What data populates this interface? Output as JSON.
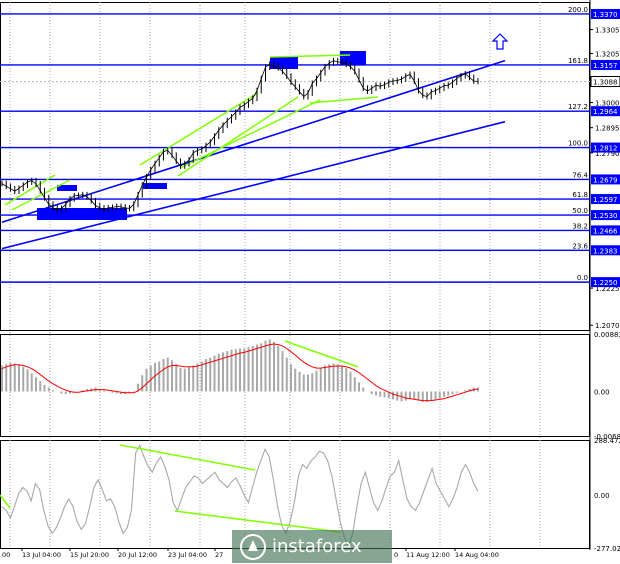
{
  "chart_data": [
    {
      "type": "line",
      "name": "price",
      "x_ticks": [
        "13 Jul 04:00",
        "15 Jul 20:00",
        "20 Jul 12:00",
        "23 Jul 04:00",
        "27",
        "11 Aug 12:00",
        "14 Aug 04:00"
      ],
      "x_tick_partial": [
        "00",
        "0"
      ],
      "ylim": [
        1.205,
        1.342
      ],
      "price_scale_ticks": [
        "1.3305",
        "1.3205",
        "1.3000",
        "1.2895",
        "1.2790",
        "1.2225",
        "1.2070"
      ],
      "current_price": "1.3088",
      "fib_levels": [
        {
          "pct": "200.0",
          "value": "1.3370",
          "y": 1.337
        },
        {
          "pct": "161.8",
          "value": "1.3157",
          "y": 1.3157
        },
        {
          "pct": "127.2",
          "value": "1.2964",
          "y": 1.2964
        },
        {
          "pct": "100.0",
          "value": "1.2812",
          "y": 1.2812
        },
        {
          "pct": "76.4",
          "value": "1.2679",
          "y": 1.2679
        },
        {
          "pct": "61.8",
          "value": "1.2597",
          "y": 1.2597
        },
        {
          "pct": "50.0",
          "value": "1.2530",
          "y": 1.253
        },
        {
          "pct": "38.2",
          "value": "1.2466",
          "y": 1.2466
        },
        {
          "pct": "23.6",
          "value": "1.2383",
          "y": 1.2383
        },
        {
          "pct": "0.0",
          "value": "1.2250",
          "y": 1.225
        }
      ],
      "closes": [
        1.2662,
        1.265,
        1.264,
        1.263,
        1.2642,
        1.2655,
        1.2668,
        1.2674,
        1.266,
        1.2632,
        1.2602,
        1.2575,
        1.256,
        1.2552,
        1.2558,
        1.2575,
        1.2598,
        1.261,
        1.2612,
        1.2615,
        1.2606,
        1.259,
        1.257,
        1.256,
        1.2555,
        1.256,
        1.2562,
        1.2566,
        1.2564,
        1.256,
        1.2558,
        1.2575,
        1.2615,
        1.2655,
        1.269,
        1.272,
        1.2745,
        1.277,
        1.2795,
        1.28,
        1.278,
        1.2755,
        1.2735,
        1.2745,
        1.276,
        1.279,
        1.28,
        1.2805,
        1.282,
        1.2835,
        1.286,
        1.2885,
        1.2905,
        1.2925,
        1.294,
        1.296,
        1.298,
        1.299,
        1.3005,
        1.3018,
        1.305,
        1.31,
        1.3148,
        1.316,
        1.3152,
        1.3145,
        1.313,
        1.311,
        1.3085,
        1.3065,
        1.3045,
        1.3025,
        1.304,
        1.308,
        1.31,
        1.3125,
        1.315,
        1.3165,
        1.3175,
        1.317,
        1.3168,
        1.316,
        1.315,
        1.313,
        1.3095,
        1.306,
        1.3048,
        1.306,
        1.3072,
        1.3068,
        1.3075,
        1.3085,
        1.309,
        1.3092,
        1.3098,
        1.311,
        1.3118,
        1.309,
        1.305,
        1.303,
        1.3025,
        1.3045,
        1.305,
        1.306,
        1.307,
        1.3073,
        1.3085,
        1.31,
        1.3112,
        1.312,
        1.3105,
        1.309,
        1.3088
      ],
      "channel_lines": [
        {
          "from": [
            0,
            1.25
          ],
          "to": [
            117,
            1.3175
          ]
        },
        {
          "from": [
            0,
            1.239
          ],
          "to": [
            117,
            1.292
          ]
        }
      ],
      "horizontal_levels": [
        1.337,
        1.3157,
        1.2964,
        1.2812,
        1.2679,
        1.2597,
        1.253,
        1.2466,
        1.2383,
        1.225
      ],
      "color_price": "#000000",
      "color_levels": "#0000ff",
      "color_annotation": "#80ff00",
      "arrow": "up-arrow-outline"
    },
    {
      "type": "bar",
      "name": "MACD-histogram",
      "ylim": [
        -0.00683,
        0.00883
      ],
      "ticks": [
        "0.00883",
        "0.00",
        "-0.00683"
      ],
      "histogram": [
        0.004,
        0.0042,
        0.0044,
        0.0043,
        0.0041,
        0.0038,
        0.0034,
        0.0028,
        0.0022,
        0.0016,
        0.001,
        0.0006,
        0.0002,
        0.0,
        -0.0003,
        -0.0004,
        -0.0003,
        -0.0001,
        0.0,
        0.0002,
        0.0004,
        0.0005,
        0.0006,
        0.0004,
        0.0002,
        0.0,
        -0.0002,
        -0.0003,
        -0.0004,
        -0.0004,
        -0.0003,
        -0.0001,
        0.0012,
        0.0025,
        0.0035,
        0.004,
        0.0044,
        0.0046,
        0.005,
        0.0052,
        0.0048,
        0.0042,
        0.0036,
        0.0035,
        0.0038,
        0.004,
        0.0043,
        0.0046,
        0.005,
        0.0052,
        0.0055,
        0.0058,
        0.006,
        0.0062,
        0.0064,
        0.0065,
        0.0066,
        0.0066,
        0.0068,
        0.007,
        0.0072,
        0.0074,
        0.0078,
        0.008,
        0.0076,
        0.007,
        0.0062,
        0.0052,
        0.0042,
        0.0035,
        0.003,
        0.0026,
        0.0026,
        0.0028,
        0.0032,
        0.0036,
        0.004,
        0.0042,
        0.0043,
        0.0042,
        0.004,
        0.0036,
        0.003,
        0.0022,
        0.0014,
        0.0006,
        0.0,
        -0.0004,
        -0.0006,
        -0.0008,
        -0.0009,
        -0.001,
        -0.0012,
        -0.0014,
        -0.0015,
        -0.0014,
        -0.0012,
        -0.0012,
        -0.0014,
        -0.0016,
        -0.0016,
        -0.0014,
        -0.0012,
        -0.001,
        -0.0008,
        -0.0006,
        -0.0004,
        -0.0002,
        0.0,
        0.0002,
        0.0004,
        0.0006,
        0.0006
      ],
      "signal": [
        0.0035,
        0.0038,
        0.004,
        0.0041,
        0.0041,
        0.004,
        0.0038,
        0.0035,
        0.0031,
        0.0026,
        0.0021,
        0.0016,
        0.0012,
        0.0008,
        0.0005,
        0.0002,
        0.0,
        -0.0001,
        -0.0001,
        0.0,
        0.0001,
        0.0002,
        0.0003,
        0.0003,
        0.0003,
        0.0002,
        0.0001,
        0.0,
        -0.0001,
        -0.0002,
        -0.0002,
        -0.0002,
        0.0001,
        0.0006,
        0.0012,
        0.0018,
        0.0024,
        0.0029,
        0.0034,
        0.0038,
        0.004,
        0.004,
        0.0039,
        0.0038,
        0.0038,
        0.0038,
        0.0039,
        0.0041,
        0.0043,
        0.0045,
        0.0047,
        0.0049,
        0.0051,
        0.0053,
        0.0055,
        0.0057,
        0.0059,
        0.006,
        0.0062,
        0.0064,
        0.0066,
        0.0068,
        0.007,
        0.0072,
        0.0073,
        0.0072,
        0.007,
        0.0066,
        0.0061,
        0.0056,
        0.005,
        0.0045,
        0.0041,
        0.0038,
        0.0036,
        0.0036,
        0.0037,
        0.0038,
        0.0039,
        0.0039,
        0.0039,
        0.0038,
        0.0036,
        0.0033,
        0.0029,
        0.0024,
        0.0019,
        0.0014,
        0.0009,
        0.0005,
        0.0002,
        -0.0001,
        -0.0004,
        -0.0006,
        -0.0008,
        -0.001,
        -0.0011,
        -0.0012,
        -0.0013,
        -0.0014,
        -0.0014,
        -0.0014,
        -0.0013,
        -0.0012,
        -0.0011,
        -0.0009,
        -0.0007,
        -0.0005,
        -0.0003,
        -0.0001,
        0.0001,
        0.0003,
        0.0004
      ],
      "color_bars": "#a8a8a8",
      "color_signal": "#ff0000"
    },
    {
      "type": "line",
      "name": "CCI",
      "ylim": [
        -277.023,
        288.4729
      ],
      "ticks": [
        "288.4729",
        "0.00",
        "-277.023"
      ],
      "values": [
        -60,
        -80,
        -120,
        -60,
        10,
        40,
        20,
        -30,
        60,
        30,
        -80,
        -160,
        -200,
        -170,
        -120,
        -60,
        -20,
        -60,
        -140,
        -180,
        -150,
        -60,
        40,
        80,
        30,
        -30,
        -20,
        -60,
        -140,
        -200,
        -170,
        -80,
        220,
        260,
        200,
        150,
        120,
        170,
        200,
        150,
        80,
        -40,
        -80,
        -20,
        40,
        70,
        100,
        90,
        60,
        80,
        100,
        120,
        80,
        60,
        40,
        70,
        90,
        50,
        0,
        -40,
        40,
        120,
        180,
        240,
        200,
        80,
        -60,
        -160,
        -200,
        -140,
        -40,
        100,
        160,
        140,
        180,
        200,
        230,
        220,
        180,
        100,
        -20,
        -140,
        -220,
        -270,
        -200,
        -60,
        60,
        120,
        40,
        -40,
        -80,
        -30,
        40,
        100,
        120,
        180,
        80,
        -20,
        -60,
        -80,
        -40,
        20,
        80,
        140,
        60,
        20,
        -20,
        -60,
        -20,
        40,
        120,
        160,
        120,
        60,
        20
      ],
      "color_line": "#a8a8a8",
      "color_annotation": "#80ff00"
    }
  ],
  "watermark": {
    "text": "instaforex"
  }
}
